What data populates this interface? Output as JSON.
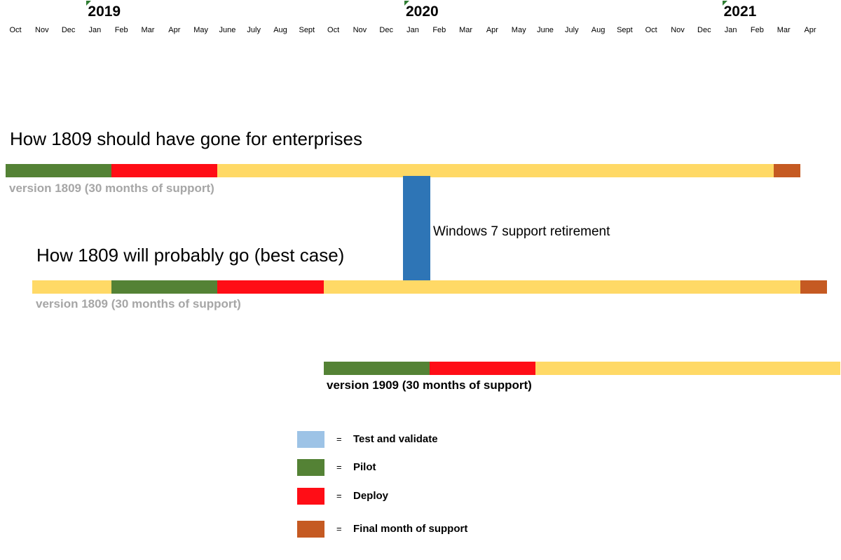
{
  "timeline": {
    "months": [
      "Oct",
      "Nov",
      "Dec",
      "Jan",
      "Feb",
      "Mar",
      "Apr",
      "May",
      "June",
      "July",
      "Aug",
      "Sept",
      "Oct",
      "Nov",
      "Dec",
      "Jan",
      "Feb",
      "Mar",
      "Apr",
      "May",
      "June",
      "July",
      "Aug",
      "Sept",
      "Oct",
      "Nov",
      "Dec",
      "Jan",
      "Feb",
      "Mar",
      "Apr"
    ],
    "years": [
      {
        "label": "2019",
        "month_index": 3
      },
      {
        "label": "2020",
        "month_index": 15
      },
      {
        "label": "2021",
        "month_index": 27
      }
    ]
  },
  "colors": {
    "test": "#9dc3e6",
    "pilot": "#548235",
    "deploy": "#ff0d16",
    "support": "#ffd966",
    "final": "#c55a22",
    "win7": "#2e75b6",
    "year_flag": "#2e7d32"
  },
  "sections": {
    "should_title": "How 1809 should have gone for enterprises",
    "probably_title": "How 1809 will probably go (best case)"
  },
  "bars": [
    {
      "id": "bar-1809-should",
      "label": "version 1809 (30 months of support)",
      "label_style": "grey",
      "segments": [
        {
          "phase": "pilot",
          "start": 0,
          "end": 4
        },
        {
          "phase": "deploy",
          "start": 4,
          "end": 8
        },
        {
          "phase": "support",
          "start": 8,
          "end": 29
        },
        {
          "phase": "final",
          "start": 29,
          "end": 30
        }
      ]
    },
    {
      "id": "bar-1809-probably",
      "label": "version 1809 (30 months of support)",
      "label_style": "grey",
      "segments": [
        {
          "phase": "support",
          "start": 1,
          "end": 4
        },
        {
          "phase": "pilot",
          "start": 4,
          "end": 8
        },
        {
          "phase": "deploy",
          "start": 8,
          "end": 12
        },
        {
          "phase": "support",
          "start": 12,
          "end": 30
        },
        {
          "phase": "final",
          "start": 30,
          "end": 31
        }
      ]
    },
    {
      "id": "bar-1909",
      "label": "version 1909 (30 months of support)",
      "label_style": "black",
      "segments": [
        {
          "phase": "pilot",
          "start": 12,
          "end": 16
        },
        {
          "phase": "deploy",
          "start": 16,
          "end": 20
        },
        {
          "phase": "support",
          "start": 20,
          "end": 31.5
        }
      ]
    }
  ],
  "win7": {
    "label": "Windows 7 support retirement",
    "start": 15,
    "end": 16
  },
  "legend": [
    {
      "key": "test",
      "eq": "=",
      "label": "Test and validate"
    },
    {
      "key": "pilot",
      "eq": "=",
      "label": "Pilot"
    },
    {
      "key": "deploy",
      "eq": "=",
      "label": "Deploy"
    },
    {
      "key": "final",
      "eq": "=",
      "label": "Final month of support"
    }
  ]
}
